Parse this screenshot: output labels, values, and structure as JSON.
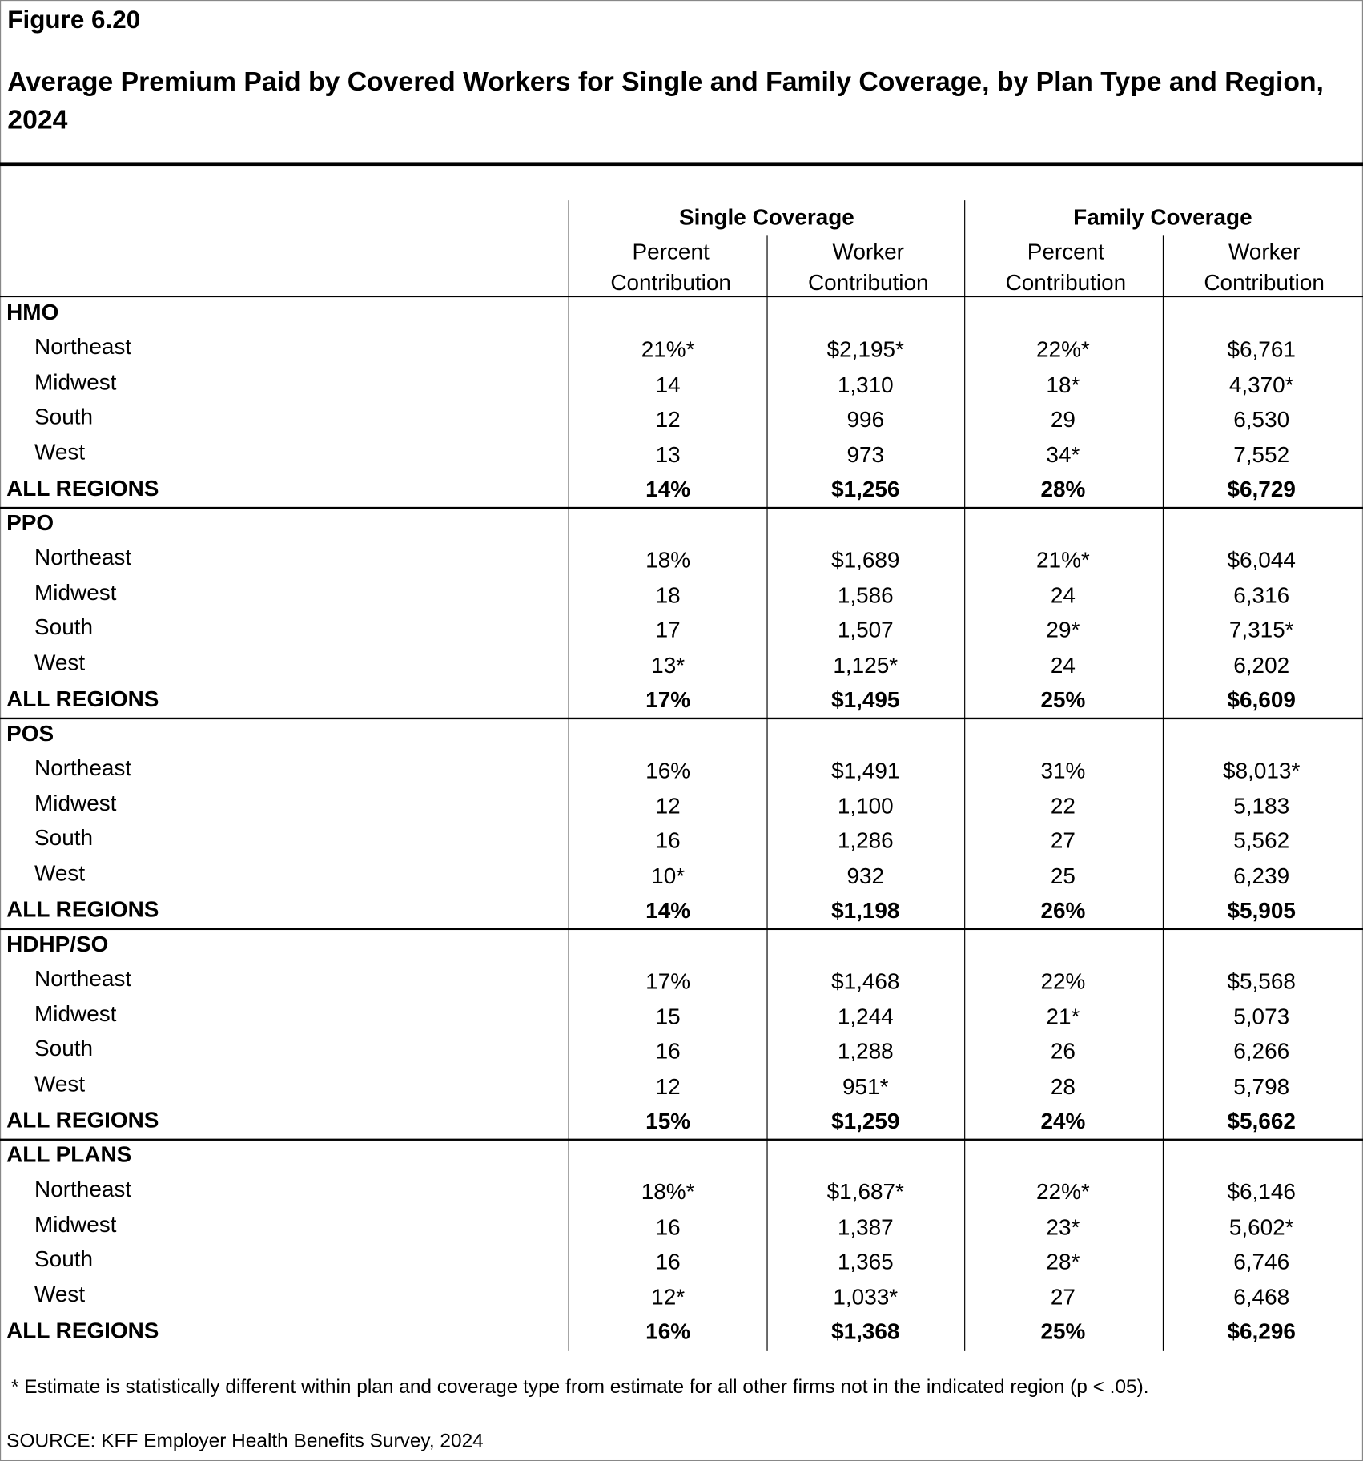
{
  "header": {
    "figure": "Figure 6.20",
    "title": "Average Premium Paid by Covered Workers for Single and Family Coverage, by Plan Type and Region, 2024"
  },
  "table": {
    "groups": [
      "Single Coverage",
      "Family Coverage"
    ],
    "columns": [
      "Percent Contribution",
      "Worker Contribution",
      "Percent Contribution",
      "Worker Contribution"
    ],
    "sections": [
      {
        "name": "HMO",
        "rows": [
          {
            "label": "Northeast",
            "cells": [
              "21%*",
              "$2,195*",
              "22%*",
              "$6,761"
            ]
          },
          {
            "label": "Midwest",
            "cells": [
              "14",
              "1,310",
              "18*",
              "4,370*"
            ]
          },
          {
            "label": "South",
            "cells": [
              "12",
              "996",
              "29",
              "6,530"
            ]
          },
          {
            "label": "West",
            "cells": [
              "13",
              "973",
              "34*",
              "7,552"
            ]
          }
        ],
        "total": {
          "label": "ALL REGIONS",
          "cells": [
            "14%",
            "$1,256",
            "28%",
            "$6,729"
          ]
        }
      },
      {
        "name": "PPO",
        "rows": [
          {
            "label": "Northeast",
            "cells": [
              "18%",
              "$1,689",
              "21%*",
              "$6,044"
            ]
          },
          {
            "label": "Midwest",
            "cells": [
              "18",
              "1,586",
              "24",
              "6,316"
            ]
          },
          {
            "label": "South",
            "cells": [
              "17",
              "1,507",
              "29*",
              "7,315*"
            ]
          },
          {
            "label": "West",
            "cells": [
              "13*",
              "1,125*",
              "24",
              "6,202"
            ]
          }
        ],
        "total": {
          "label": "ALL REGIONS",
          "cells": [
            "17%",
            "$1,495",
            "25%",
            "$6,609"
          ]
        }
      },
      {
        "name": "POS",
        "rows": [
          {
            "label": "Northeast",
            "cells": [
              "16%",
              "$1,491",
              "31%",
              "$8,013*"
            ]
          },
          {
            "label": "Midwest",
            "cells": [
              "12",
              "1,100",
              "22",
              "5,183"
            ]
          },
          {
            "label": "South",
            "cells": [
              "16",
              "1,286",
              "27",
              "5,562"
            ]
          },
          {
            "label": "West",
            "cells": [
              "10*",
              "932",
              "25",
              "6,239"
            ]
          }
        ],
        "total": {
          "label": "ALL REGIONS",
          "cells": [
            "14%",
            "$1,198",
            "26%",
            "$5,905"
          ]
        }
      },
      {
        "name": "HDHP/SO",
        "rows": [
          {
            "label": "Northeast",
            "cells": [
              "17%",
              "$1,468",
              "22%",
              "$5,568"
            ]
          },
          {
            "label": "Midwest",
            "cells": [
              "15",
              "1,244",
              "21*",
              "5,073"
            ]
          },
          {
            "label": "South",
            "cells": [
              "16",
              "1,288",
              "26",
              "6,266"
            ]
          },
          {
            "label": "West",
            "cells": [
              "12",
              "951*",
              "28",
              "5,798"
            ]
          }
        ],
        "total": {
          "label": "ALL REGIONS",
          "cells": [
            "15%",
            "$1,259",
            "24%",
            "$5,662"
          ]
        }
      },
      {
        "name": "ALL PLANS",
        "rows": [
          {
            "label": "Northeast",
            "cells": [
              "18%*",
              "$1,687*",
              "22%*",
              "$6,146"
            ]
          },
          {
            "label": "Midwest",
            "cells": [
              "16",
              "1,387",
              "23*",
              "5,602*"
            ]
          },
          {
            "label": "South",
            "cells": [
              "16",
              "1,365",
              "28*",
              "6,746"
            ]
          },
          {
            "label": "West",
            "cells": [
              "12*",
              "1,033*",
              "27",
              "6,468"
            ]
          }
        ],
        "total": {
          "label": "ALL REGIONS",
          "cells": [
            "16%",
            "$1,368",
            "25%",
            "$6,296"
          ]
        }
      }
    ]
  },
  "footnote": "* Estimate is statistically different within plan and coverage type from estimate for all other firms not in the indicated region (p < .05).",
  "source": "SOURCE: KFF Employer Health Benefits Survey, 2024"
}
